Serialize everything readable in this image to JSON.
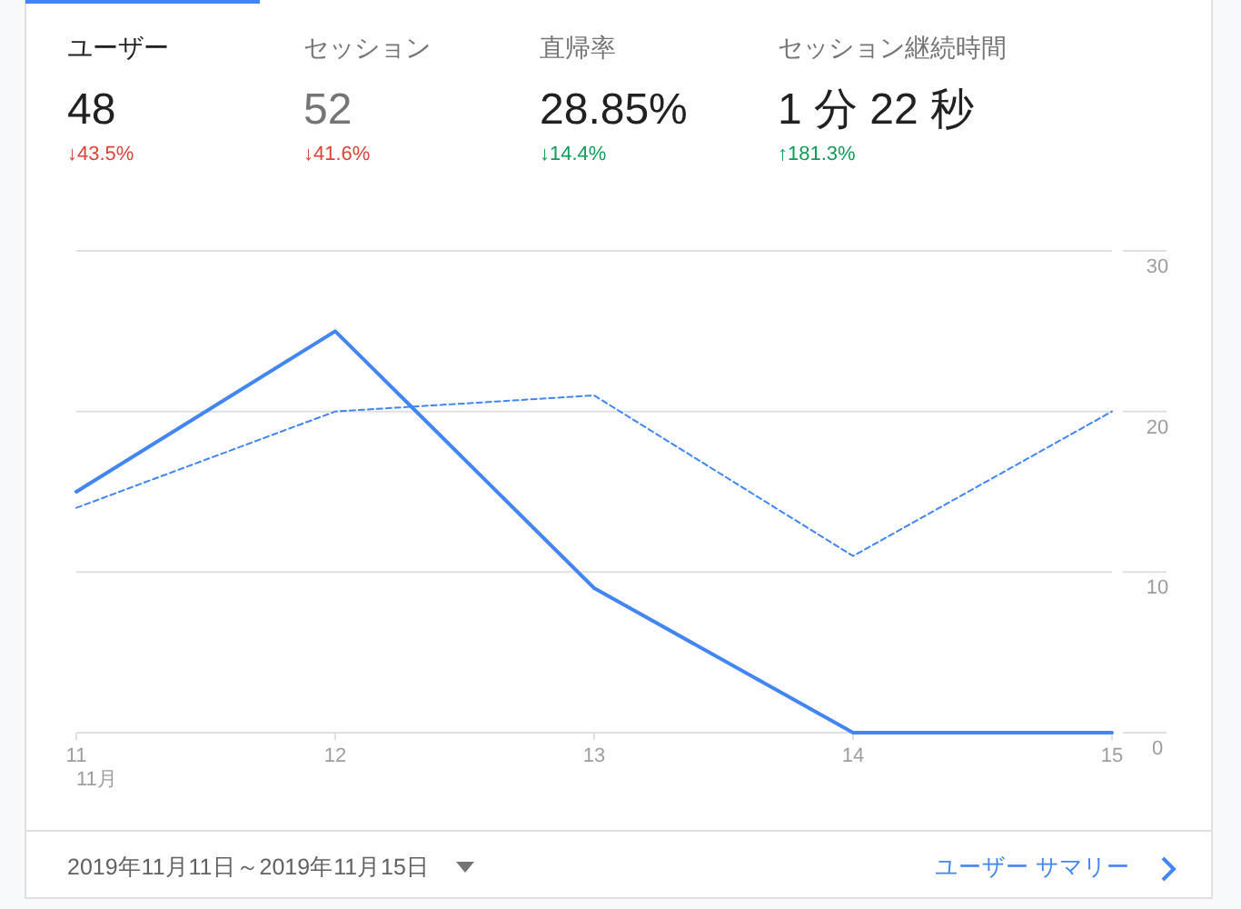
{
  "chart_data": [
    {
      "type": "other",
      "annotations": [
        "ユーザー",
        "48",
        "↓43.5%",
        "セッション",
        "52",
        "↓41.6%",
        "直帰率",
        "28.85%",
        "↓14.4%",
        "セッション継続時間",
        "1 分 22 秒",
        "↑181.3%"
      ],
      "colors": [
        "#212121",
        "#212121",
        "#db4437",
        "#757575",
        "#757575",
        "#db4437",
        "#757575",
        "#212121",
        "#0f9d58",
        "#757575",
        "#212121",
        "#0f9d58"
      ]
    },
    {
      "type": "line",
      "categories": [
        "11",
        "12",
        "13",
        "14",
        "15"
      ],
      "series": [
        {
          "color": "#4285f4",
          "line_style": "solid",
          "values": [
            15,
            25,
            9,
            0,
            0
          ]
        },
        {
          "color": "#4285f4",
          "line_style": "dashed",
          "values": [
            14,
            20,
            21,
            11,
            20
          ]
        }
      ],
      "ylim": [
        0,
        30
      ],
      "yticks": [
        0,
        10,
        20,
        30
      ],
      "grid": "y",
      "annotations": [
        "11月",
        "2019年11月11日～2019年11月15日",
        "ユーザー サマリー"
      ]
    }
  ]
}
